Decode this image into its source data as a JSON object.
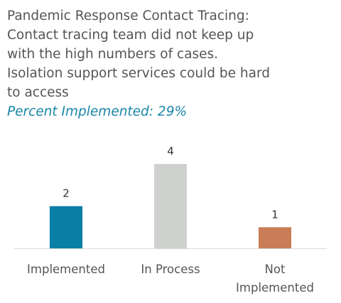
{
  "title_lines": [
    "Pandemic Response Contact Tracing:",
    "Contact tracing team did not keep up",
    "with the high numbers of cases.",
    "Isolation support services could be hard",
    "to access"
  ],
  "subtitle": "Percent Implemented: 29%",
  "chart_data": {
    "type": "bar",
    "title": "Pandemic Response Contact Tracing: Contact tracing team did not keep up with the high numbers of cases. Isolation support services could be hard to access",
    "subtitle": "Percent Implemented: 29%",
    "categories": [
      "Implemented",
      "In Process",
      "Not Implemented"
    ],
    "category_lines": [
      [
        "Implemented"
      ],
      [
        "In Process"
      ],
      [
        "Not",
        "Implemented"
      ]
    ],
    "values": [
      2,
      4,
      1
    ],
    "colors": [
      "#0a7fa6",
      "#cfd1cf",
      "#c97c55"
    ],
    "ylim": [
      0,
      4
    ],
    "grid": false,
    "legend": "none"
  }
}
